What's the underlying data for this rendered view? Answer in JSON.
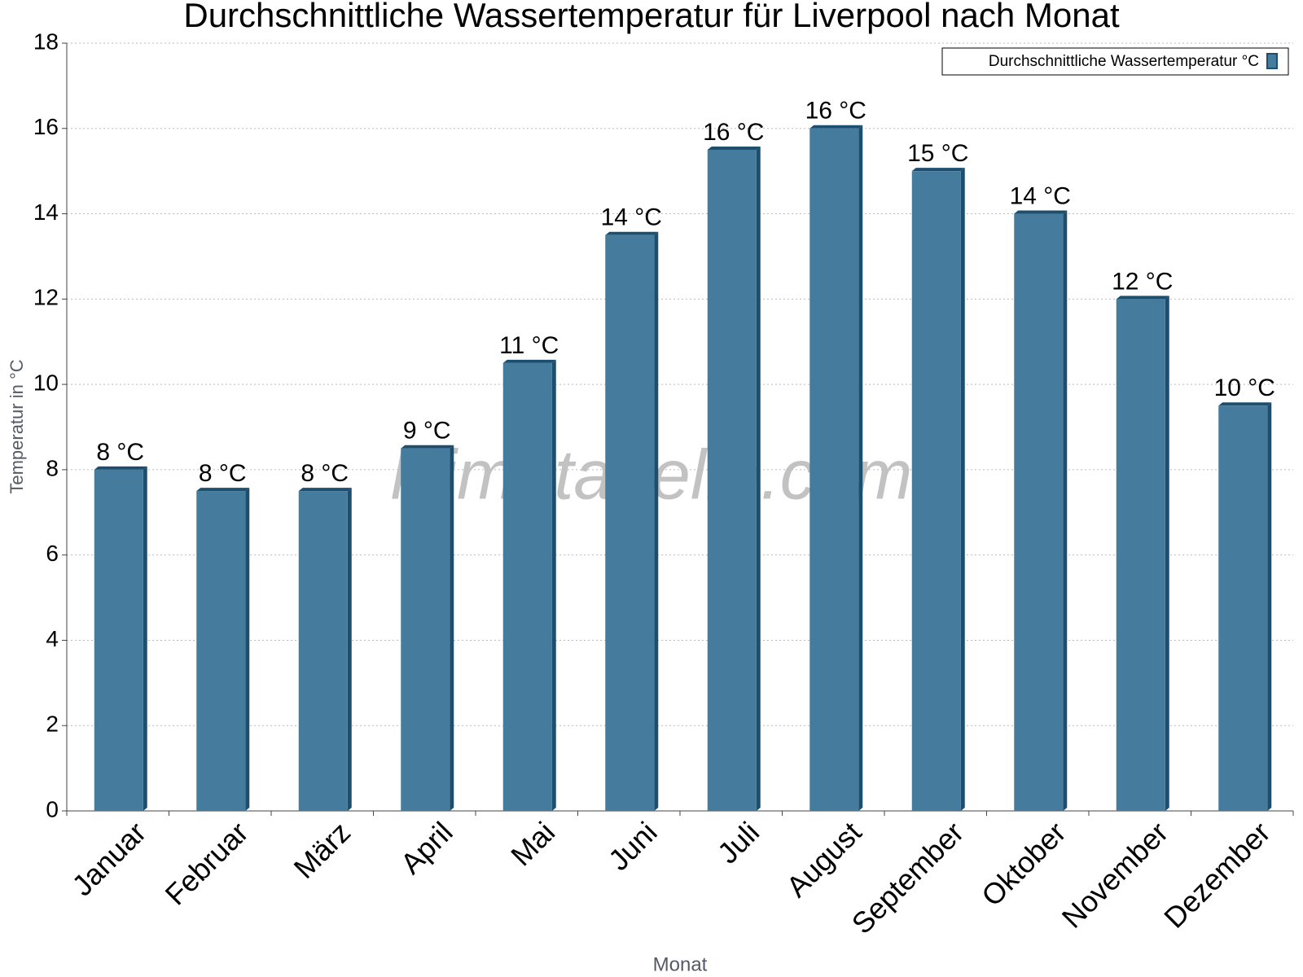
{
  "chart_data": {
    "type": "bar",
    "title": "Durchschnittliche Wassertemperatur für Liverpool nach Monat",
    "x_label": "Monat",
    "y_label": "Temperatur in °C",
    "watermark": "klimatabelle.com",
    "categories": [
      "Januar",
      "Februar",
      "März",
      "April",
      "Mai",
      "Juni",
      "Juli",
      "August",
      "September",
      "Oktober",
      "November",
      "Dezember"
    ],
    "series": [
      {
        "name": "Durchschnittliche Wassertemperatur °C",
        "color": "#457b9d",
        "values": [
          8,
          7.5,
          7.5,
          8.5,
          10.5,
          13.5,
          15.5,
          16,
          15,
          14,
          12,
          9.5
        ],
        "value_labels": [
          "8 °C",
          "8 °C",
          "8 °C",
          "9 °C",
          "11 °C",
          "14 °C",
          "16 °C",
          "16 °C",
          "15 °C",
          "14 °C",
          "12 °C",
          "10 °C"
        ]
      }
    ],
    "ylim": [
      0,
      18
    ],
    "yticks": [
      0,
      2,
      4,
      6,
      8,
      10,
      12,
      14,
      16,
      18
    ],
    "grid": true,
    "legend": "top-right"
  }
}
